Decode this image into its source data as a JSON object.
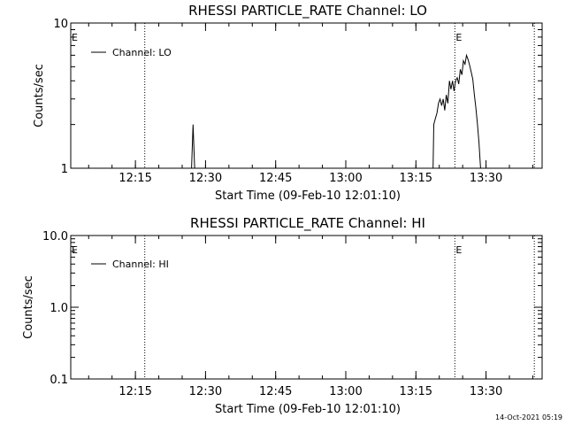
{
  "chart_data": [
    {
      "type": "line",
      "title": "RHESSI PARTICLE_RATE Channel: LO",
      "xlabel": "Start Time (09-Feb-10 12:01:10)",
      "ylabel": "Counts/sec",
      "yscale": "log",
      "ylim": [
        1,
        10
      ],
      "xlim": [
        "12:01:10",
        "13:42:00"
      ],
      "x_ticks": [
        "12:15",
        "12:30",
        "12:45",
        "13:00",
        "13:15",
        "13:30"
      ],
      "y_ticks": [
        "1",
        "10"
      ],
      "grid": false,
      "legend": {
        "label": "Channel: LO",
        "placement": "top-left"
      },
      "markers": [
        {
          "label": "E",
          "time": "12:01:10"
        },
        {
          "label": "E",
          "time": "13:23:20"
        }
      ],
      "dotted_lines": [
        "12:17:00",
        "13:23:20",
        "13:40:20"
      ],
      "series": [
        {
          "name": "Channel: LO",
          "points": [
            [
              "12:27:00",
              1
            ],
            [
              "12:27:20",
              2
            ],
            [
              "12:27:40",
              1
            ],
            [
              "13:18:40",
              1
            ],
            [
              "13:18:50",
              2
            ],
            [
              "13:19:10",
              2.2
            ],
            [
              "13:19:30",
              2.4
            ],
            [
              "13:19:50",
              2.8
            ],
            [
              "13:20:10",
              3
            ],
            [
              "13:20:30",
              2.7
            ],
            [
              "13:20:50",
              3
            ],
            [
              "13:21:10",
              2.5
            ],
            [
              "13:21:30",
              3.2
            ],
            [
              "13:21:50",
              2.8
            ],
            [
              "13:22:10",
              4
            ],
            [
              "13:22:30",
              3.5
            ],
            [
              "13:22:50",
              4
            ],
            [
              "13:23:10",
              3.4
            ],
            [
              "13:23:30",
              4
            ],
            [
              "13:23:50",
              4.2
            ],
            [
              "13:24:10",
              3.8
            ],
            [
              "13:24:30",
              4.8
            ],
            [
              "13:24:50",
              4.4
            ],
            [
              "13:25:10",
              5.5
            ],
            [
              "13:25:30",
              5.2
            ],
            [
              "13:25:50",
              6
            ],
            [
              "13:26:10",
              5.6
            ],
            [
              "13:26:30",
              5.1
            ],
            [
              "13:26:50",
              4.6
            ],
            [
              "13:27:10",
              4.1
            ],
            [
              "13:27:30",
              3.2
            ],
            [
              "13:27:50",
              2.6
            ],
            [
              "13:28:10",
              2
            ],
            [
              "13:28:30",
              1.5
            ],
            [
              "13:28:50",
              1
            ]
          ]
        }
      ]
    },
    {
      "type": "line",
      "title": "RHESSI PARTICLE_RATE Channel: HI",
      "xlabel": "Start Time (09-Feb-10 12:01:10)",
      "ylabel": "Counts/sec",
      "yscale": "log",
      "ylim": [
        0.1,
        10
      ],
      "xlim": [
        "12:01:10",
        "13:42:00"
      ],
      "x_ticks": [
        "12:15",
        "12:30",
        "12:45",
        "13:00",
        "13:15",
        "13:30"
      ],
      "y_ticks": [
        "10.0",
        "1.0",
        "0.1"
      ],
      "grid": false,
      "legend": {
        "label": "Channel: HI",
        "placement": "top-left"
      },
      "markers": [
        {
          "label": "E",
          "time": "12:01:10"
        },
        {
          "label": "E",
          "time": "13:23:20"
        }
      ],
      "dotted_lines": [
        "12:17:00",
        "13:23:20",
        "13:40:20"
      ],
      "series": [
        {
          "name": "Channel: HI",
          "points": []
        }
      ]
    }
  ],
  "footer": {
    "timestamp": "14-Oct-2021 05:19"
  }
}
